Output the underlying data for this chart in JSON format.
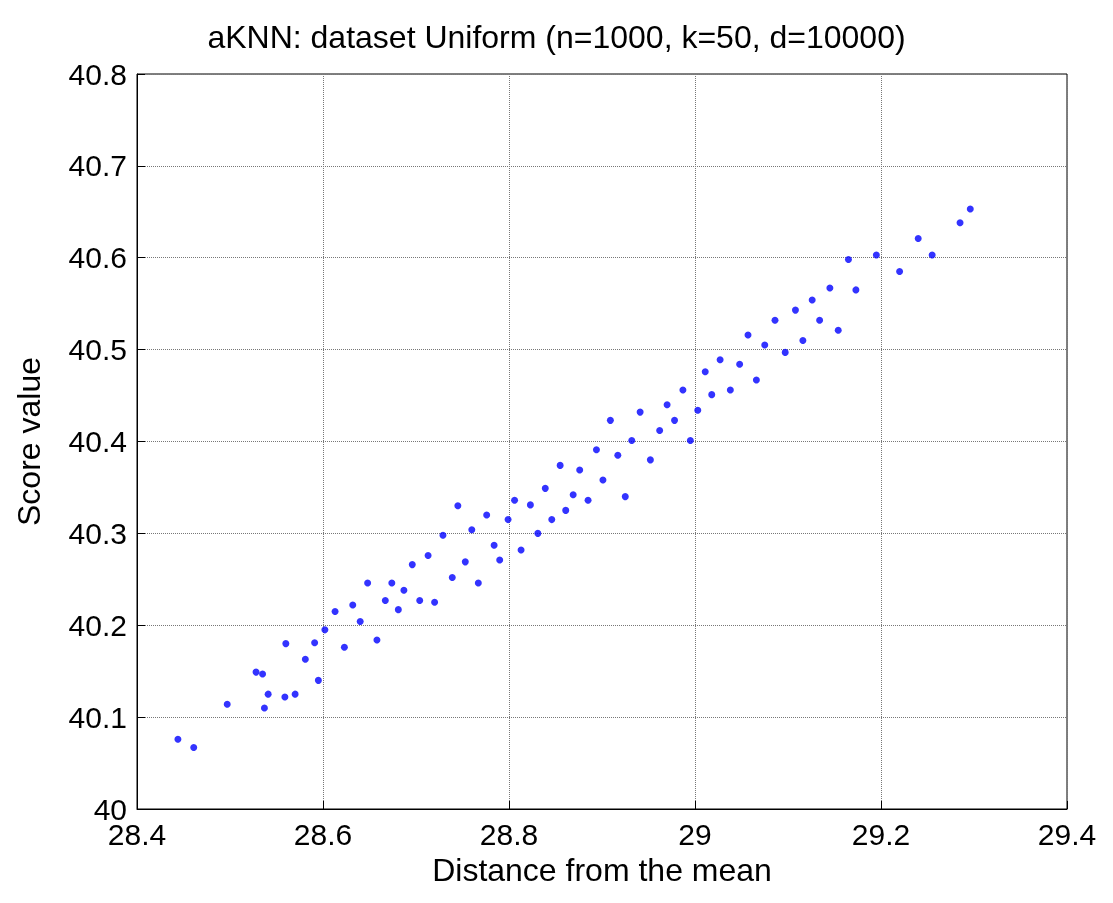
{
  "chart_data": {
    "type": "scatter",
    "title": "aKNN: dataset Uniform (n=1000, k=50, d=10000)",
    "xlabel": "Distance from the mean",
    "ylabel": "Score value",
    "xlim": [
      28.4,
      29.4
    ],
    "xticks": [
      28.4,
      28.6,
      28.8,
      29,
      29.2,
      29.4
    ],
    "ylim": [
      40,
      40.8
    ],
    "yticks": [
      40,
      40.1,
      40.2,
      40.3,
      40.4,
      40.5,
      40.6,
      40.7,
      40.8
    ],
    "grid": true,
    "marker": "circle",
    "series": [
      {
        "color": "#0000ff",
        "x": [
          28.444,
          28.461,
          28.497,
          28.528,
          28.535,
          28.537,
          28.541,
          28.56,
          28.559,
          28.57,
          28.581,
          28.591,
          28.595,
          28.602,
          28.613,
          28.623,
          28.632,
          28.64,
          28.648,
          28.658,
          28.667,
          28.674,
          28.681,
          28.687,
          28.696,
          28.704,
          28.713,
          28.72,
          28.729,
          28.739,
          28.745,
          28.753,
          28.76,
          28.767,
          28.776,
          28.784,
          28.79,
          28.799,
          28.806,
          28.813,
          28.823,
          28.831,
          28.839,
          28.846,
          28.855,
          28.861,
          28.869,
          28.876,
          28.885,
          28.894,
          28.901,
          28.909,
          28.917,
          28.925,
          28.932,
          28.941,
          28.952,
          28.962,
          28.97,
          28.978,
          28.987,
          28.995,
          29.003,
          29.011,
          29.018,
          29.027,
          29.038,
          29.048,
          29.057,
          29.066,
          29.075,
          29.086,
          29.097,
          29.108,
          29.116,
          29.126,
          29.134,
          29.145,
          29.154,
          29.165,
          29.173,
          29.195,
          29.22,
          29.24,
          29.255,
          29.285,
          29.296
        ],
        "values": [
          40.076,
          40.067,
          40.114,
          40.149,
          40.147,
          40.11,
          40.125,
          40.18,
          40.122,
          40.125,
          40.163,
          40.181,
          40.14,
          40.195,
          40.215,
          40.176,
          40.222,
          40.204,
          40.246,
          40.184,
          40.227,
          40.246,
          40.217,
          40.238,
          40.266,
          40.227,
          40.276,
          40.225,
          40.298,
          40.252,
          40.33,
          40.269,
          40.304,
          40.246,
          40.32,
          40.287,
          40.271,
          40.315,
          40.336,
          40.282,
          40.331,
          40.3,
          40.349,
          40.315,
          40.374,
          40.325,
          40.342,
          40.369,
          40.336,
          40.391,
          40.358,
          40.423,
          40.385,
          40.34,
          40.401,
          40.432,
          40.38,
          40.412,
          40.44,
          40.423,
          40.456,
          40.401,
          40.434,
          40.476,
          40.451,
          40.489,
          40.456,
          40.484,
          40.516,
          40.467,
          40.505,
          40.532,
          40.497,
          40.543,
          40.51,
          40.554,
          40.532,
          40.567,
          40.521,
          40.598,
          40.565,
          40.603,
          40.585,
          40.621,
          40.603,
          40.638,
          40.653
        ]
      }
    ]
  }
}
